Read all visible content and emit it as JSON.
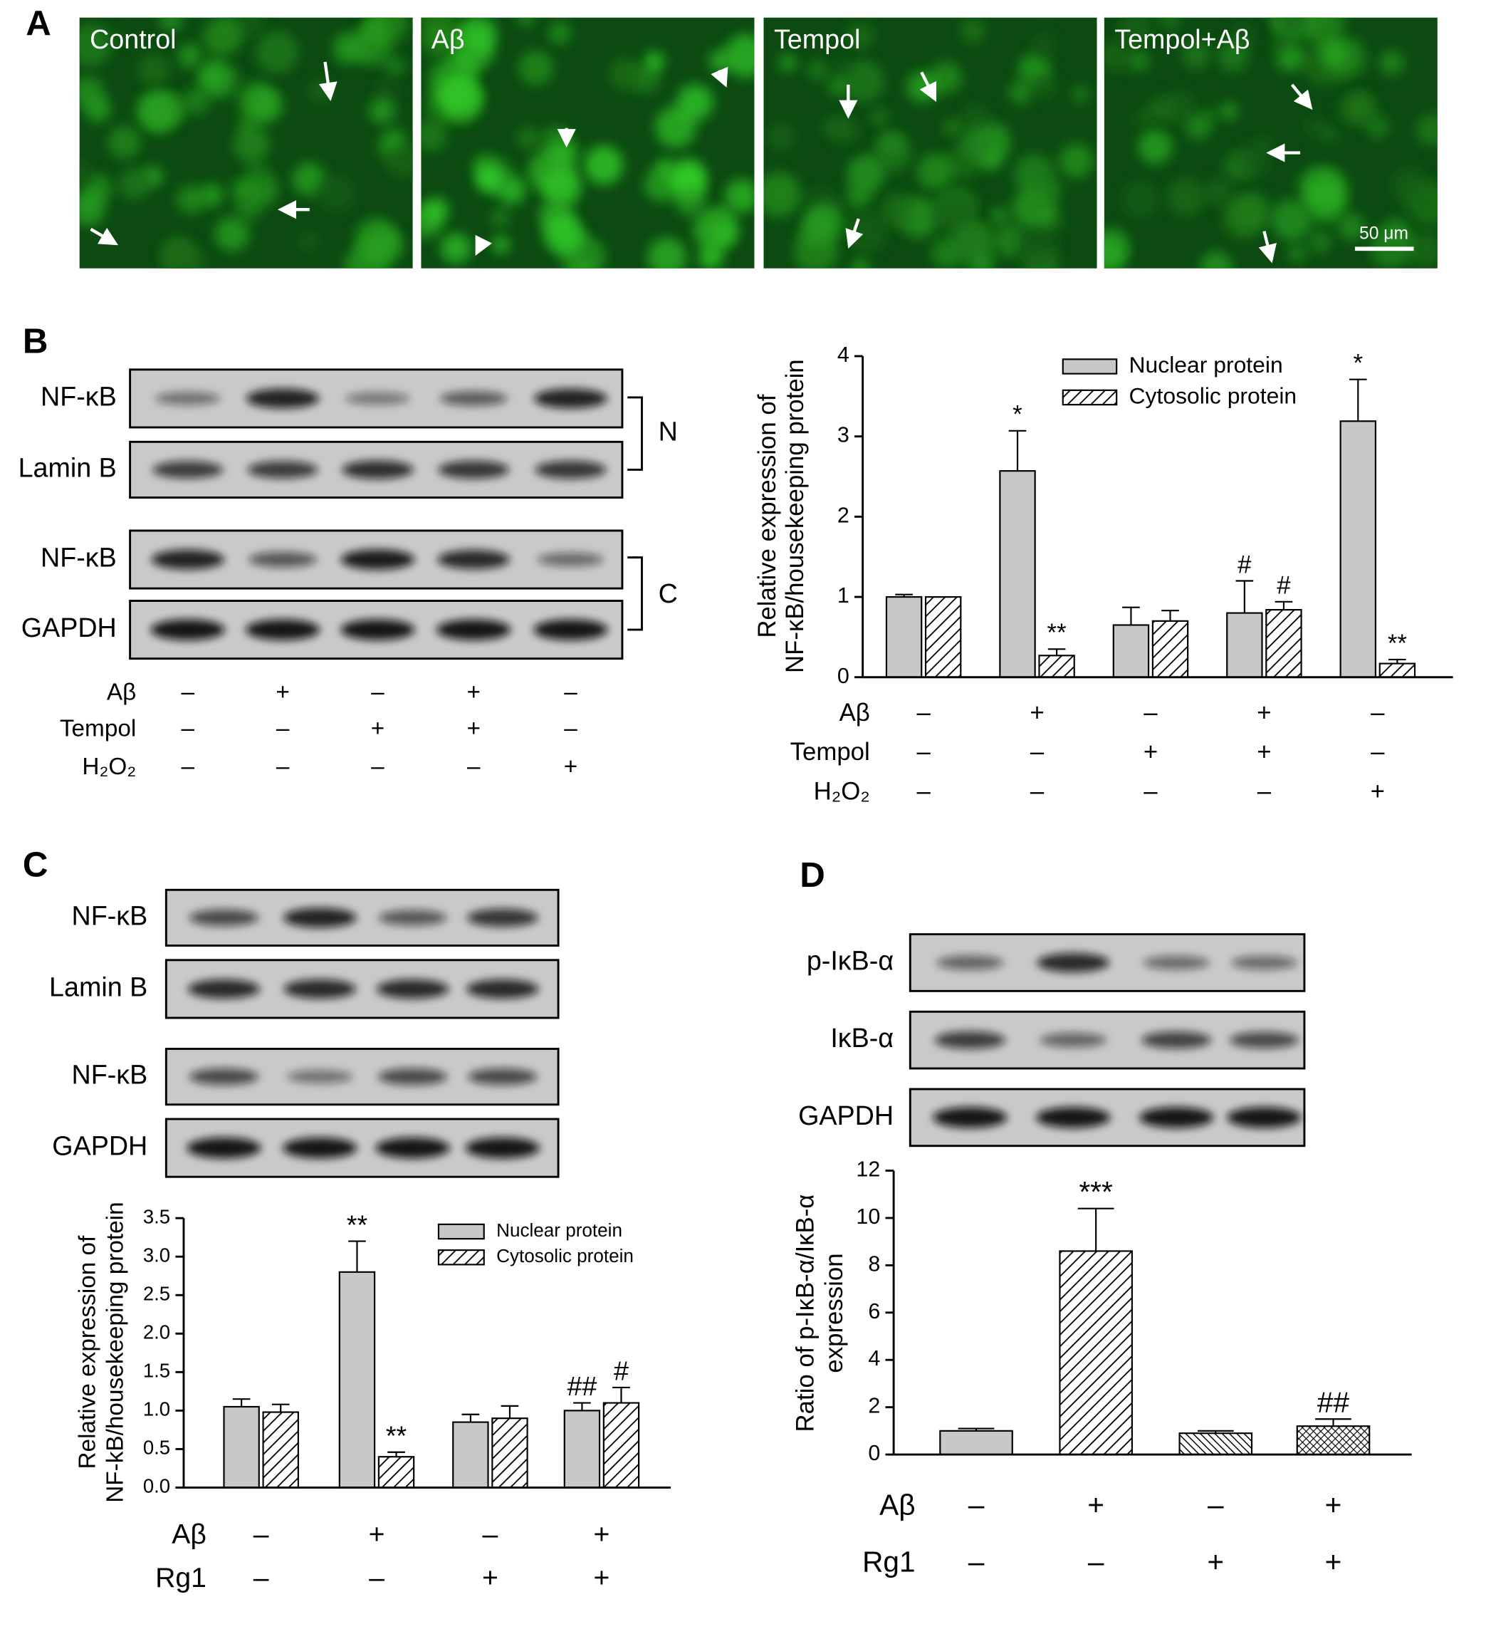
{
  "panel_labels": [
    "A",
    "B",
    "C",
    "D"
  ],
  "micrographs": {
    "labels": [
      "Control",
      "Aβ",
      "Tempol",
      "Tempol+Aβ"
    ],
    "scale_bar": "50 μm"
  },
  "blots": {
    "b": {
      "rows": [
        "NF-κB",
        "Lamin B",
        "NF-κB",
        "GAPDH"
      ],
      "fractions": [
        "N",
        "C"
      ],
      "conditions": [
        {
          "label": "Aβ",
          "values": [
            "–",
            "+",
            "–",
            "+",
            "–"
          ]
        },
        {
          "label": "Tempol",
          "values": [
            "–",
            "–",
            "+",
            "+",
            "–"
          ]
        },
        {
          "label": "H₂O₂",
          "values": [
            "–",
            "–",
            "–",
            "–",
            "+"
          ]
        }
      ]
    },
    "c": {
      "rows": [
        "NF-κB",
        "Lamin B",
        "NF-κB",
        "GAPDH"
      ]
    },
    "d": {
      "rows": [
        "p-IκB-α",
        "IκB-α",
        "GAPDH"
      ]
    }
  },
  "chart_data": [
    {
      "type": "bar",
      "categories": [
        null,
        null,
        null,
        null,
        null
      ],
      "ylabel": [
        "Relative expression of",
        "NF-κB/housekeeping protein"
      ],
      "ylim": [
        0,
        4
      ],
      "yticks": [
        0,
        1,
        2,
        3,
        4
      ],
      "series": [
        {
          "name": "Nuclear protein",
          "color": "#c8c8c8",
          "pattern": "solid",
          "values": [
            1.0,
            2.57,
            0.65,
            0.8,
            3.19
          ],
          "errors": [
            0.03,
            0.5,
            0.22,
            0.4,
            0.52
          ],
          "annotations": [
            null,
            "*",
            null,
            "#",
            "*"
          ]
        },
        {
          "name": "Cytosolic protein",
          "pattern": "hatch",
          "values": [
            1.0,
            0.27,
            0.7,
            0.84,
            0.17
          ],
          "errors": [
            0,
            0.08,
            0.13,
            0.1,
            0.05
          ],
          "annotations": [
            null,
            "**",
            null,
            "#",
            "**"
          ]
        }
      ],
      "conditions": [
        {
          "label": "Aβ",
          "values": [
            "–",
            "+",
            "–",
            "+",
            "–"
          ]
        },
        {
          "label": "Tempol",
          "values": [
            "–",
            "–",
            "+",
            "+",
            "–"
          ]
        },
        {
          "label": "H₂O₂",
          "values": [
            "–",
            "–",
            "–",
            "–",
            "+"
          ]
        }
      ]
    },
    {
      "type": "bar",
      "categories": [
        null,
        null,
        null,
        null
      ],
      "ylabel": [
        "Relative expression of",
        "NF-kB/housekeeping protein"
      ],
      "ylim": [
        0,
        3.5
      ],
      "yticks": [
        {
          "value": 0,
          "label": "0.0"
        },
        0.5,
        {
          "value": 1,
          "label": "1.0"
        },
        1.5,
        {
          "value": 2,
          "label": "2.0"
        },
        2.5,
        {
          "value": 3,
          "label": "3.0"
        },
        3.5
      ],
      "series": [
        {
          "name": "Nuclear protein",
          "color": "#c8c8c8",
          "pattern": "solid",
          "values": [
            1.05,
            2.8,
            0.85,
            1.0
          ],
          "errors": [
            0.1,
            0.4,
            0.1,
            0.1
          ],
          "annotations": [
            null,
            "**",
            null,
            "##"
          ]
        },
        {
          "name": "Cytosolic protein",
          "pattern": "hatch",
          "values": [
            0.98,
            0.4,
            0.9,
            1.1
          ],
          "errors": [
            0.1,
            0.06,
            0.16,
            0.2
          ],
          "annotations": [
            null,
            "**",
            null,
            "#"
          ]
        }
      ],
      "conditions": [
        {
          "label": "Aβ",
          "values": [
            "–",
            "+",
            "–",
            "+"
          ]
        },
        {
          "label": "Rg1",
          "values": [
            "–",
            "–",
            "+",
            "+"
          ]
        }
      ]
    },
    {
      "type": "bar",
      "categories": [
        null,
        null,
        null,
        null
      ],
      "ylabel": [
        "Ratio of p-IκB-α/IκB-α",
        "expression"
      ],
      "ylim": [
        0,
        12
      ],
      "yticks": [
        0,
        2,
        4,
        6,
        8,
        10,
        12
      ],
      "color": "#c8c8c8",
      "patterns": [
        "solid",
        "hatch",
        "dense-hatch",
        "crosshatch"
      ],
      "values": [
        1.0,
        8.6,
        0.9,
        1.2
      ],
      "errors": [
        0.1,
        1.8,
        0.1,
        0.3
      ],
      "annotations": [
        null,
        "***",
        null,
        "##"
      ],
      "conditions": [
        {
          "label": "Aβ",
          "values": [
            "–",
            "+",
            "–",
            "+"
          ]
        },
        {
          "label": "Rg1",
          "values": [
            "–",
            "–",
            "+",
            "+"
          ]
        }
      ]
    }
  ]
}
